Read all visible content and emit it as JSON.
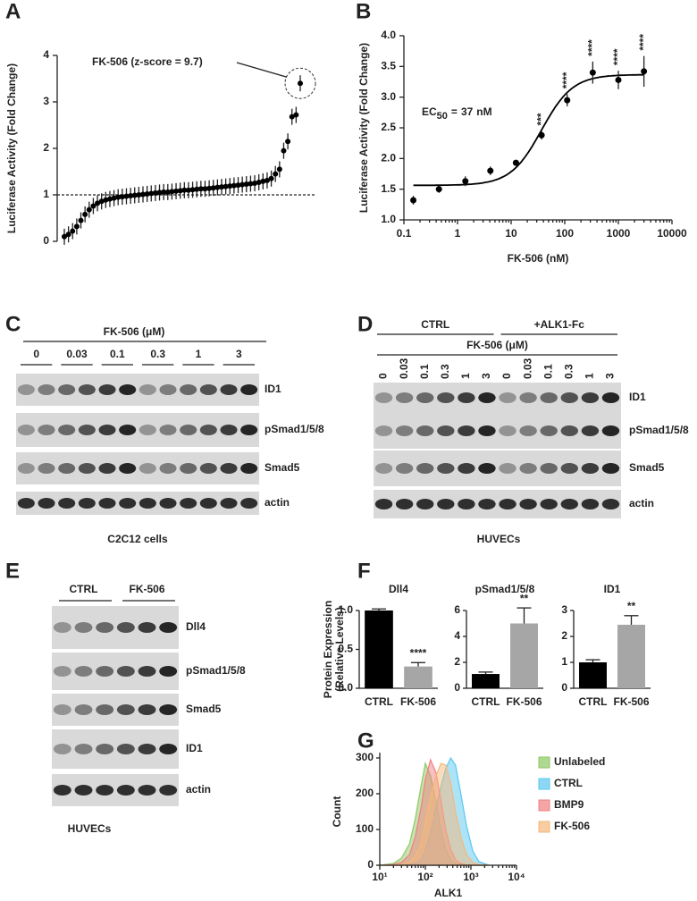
{
  "chart_data": [
    {
      "type": "rank",
      "panel": "A",
      "ylabel": "Luciferase Activity (Fold Change)",
      "annotation": "FK-506 (z-score = 9.7)",
      "ylim": [
        0,
        4
      ],
      "yticks": [
        0,
        1,
        2,
        3,
        4
      ],
      "reference_line": 1,
      "color": "#000000",
      "values": [
        0.1,
        0.15,
        0.22,
        0.32,
        0.45,
        0.58,
        0.68,
        0.76,
        0.82,
        0.86,
        0.89,
        0.91,
        0.93,
        0.95,
        0.96,
        0.97,
        0.98,
        0.99,
        1.0,
        1.01,
        1.02,
        1.03,
        1.04,
        1.05,
        1.06,
        1.06,
        1.07,
        1.08,
        1.09,
        1.1,
        1.1,
        1.11,
        1.12,
        1.13,
        1.13,
        1.14,
        1.15,
        1.16,
        1.17,
        1.18,
        1.19,
        1.2,
        1.21,
        1.22,
        1.23,
        1.24,
        1.25,
        1.27,
        1.29,
        1.31,
        1.35,
        1.45,
        1.55,
        1.95,
        2.15,
        2.68,
        2.72,
        3.4
      ]
    },
    {
      "type": "dose",
      "panel": "B",
      "ylabel": "Luciferase Activity (Fold Change)",
      "xlabel": "FK-506 (nM)",
      "log_x": true,
      "annotation": {
        "text": "EC",
        "sub": "50",
        "equals": "=",
        "value": 37,
        "unit": "nM"
      },
      "xlim": [
        0.1,
        10000
      ],
      "xticks": [
        0.1,
        1,
        10,
        100,
        1000,
        10000
      ],
      "ylim": [
        1,
        4
      ],
      "yticks": [
        {
          "value": 1,
          "label": "1.0"
        },
        {
          "value": 1.5,
          "label": "1.5"
        },
        {
          "value": 2,
          "label": "2.0"
        },
        {
          "value": 2.5,
          "label": "2.5"
        },
        {
          "value": 3,
          "label": "3.0"
        },
        {
          "value": 3.5,
          "label": "3.5"
        },
        {
          "value": 4,
          "label": "4.0"
        }
      ],
      "x": [
        0.15,
        0.45,
        1.4,
        4.1,
        12.3,
        37,
        111,
        333,
        1000,
        3000
      ],
      "values": [
        1.32,
        1.5,
        1.63,
        1.8,
        1.93,
        2.38,
        2.95,
        3.4,
        3.28,
        3.42
      ],
      "errors": [
        0.07,
        0.06,
        0.08,
        0.07,
        0.03,
        0.07,
        0.1,
        0.18,
        0.15,
        0.25
      ],
      "significance": [
        null,
        null,
        null,
        null,
        null,
        "***",
        "****",
        "****",
        "****",
        "****"
      ]
    },
    {
      "type": "bar",
      "panel": "F",
      "title": "Dll4",
      "ylabel": [
        "Protein Expression",
        "(Relative Levels)"
      ],
      "categories": [
        "CTRL",
        "FK-506"
      ],
      "values": [
        1.0,
        0.28
      ],
      "errors": [
        0.02,
        0.05
      ],
      "significance": [
        null,
        "****"
      ],
      "colors": [
        "#000000",
        "#a6a6a6"
      ],
      "ylim": [
        0,
        1.0
      ],
      "yticks": [
        {
          "value": 0,
          "label": "0.0"
        },
        {
          "value": 0.5,
          "label": "0.5"
        },
        {
          "value": 1,
          "label": "1.0"
        }
      ]
    },
    {
      "type": "bar",
      "title": "pSmad1/5/8",
      "categories": [
        "CTRL",
        "FK-506"
      ],
      "values": [
        1.1,
        5.0
      ],
      "errors": [
        0.15,
        1.2
      ],
      "significance": [
        null,
        "**"
      ],
      "colors": [
        "#000000",
        "#a6a6a6"
      ],
      "ylim": [
        0,
        6
      ],
      "yticks": [
        0,
        2,
        4,
        6
      ]
    },
    {
      "type": "bar",
      "title": "ID1",
      "categories": [
        "CTRL",
        "FK-506"
      ],
      "values": [
        1.0,
        2.45
      ],
      "errors": [
        0.1,
        0.35
      ],
      "significance": [
        null,
        "**"
      ],
      "colors": [
        "#000000",
        "#a6a6a6"
      ],
      "ylim": [
        0,
        3
      ],
      "yticks": [
        0,
        1,
        2,
        3
      ]
    },
    {
      "type": "area",
      "panel": "G",
      "xlabel": "ALK1",
      "ylabel": "Count",
      "log_x": true,
      "xlim": [
        10,
        10000
      ],
      "xticks": [
        {
          "value": 10,
          "label": "10¹"
        },
        {
          "value": 100,
          "label": "10²"
        },
        {
          "value": 1000,
          "label": "10³"
        },
        {
          "value": 10000,
          "label": "10⁴"
        }
      ],
      "ylim": [
        0,
        300
      ],
      "yticks": [
        0,
        100,
        200,
        300
      ],
      "x": [
        10,
        20,
        30,
        45,
        60,
        80,
        100,
        130,
        170,
        220,
        280,
        360,
        460,
        600,
        800,
        1100,
        1500,
        2500
      ],
      "series": [
        {
          "name": "Unlabeled",
          "color": "#8dc863",
          "values": [
            0,
            5,
            20,
            60,
            130,
            220,
            285,
            250,
            180,
            100,
            45,
            15,
            5,
            2,
            0,
            0,
            0,
            0
          ]
        },
        {
          "name": "CTRL",
          "color": "#5bc8ef",
          "values": [
            0,
            0,
            0,
            2,
            5,
            15,
            40,
            90,
            160,
            220,
            270,
            300,
            280,
            200,
            110,
            40,
            10,
            0
          ]
        },
        {
          "name": "BMP9",
          "color": "#f08080",
          "values": [
            0,
            2,
            8,
            30,
            80,
            160,
            240,
            295,
            260,
            180,
            100,
            45,
            15,
            5,
            1,
            0,
            0,
            0
          ]
        },
        {
          "name": "FK-506",
          "color": "#f5b87a",
          "values": [
            0,
            0,
            2,
            8,
            25,
            60,
            120,
            190,
            250,
            285,
            280,
            230,
            150,
            80,
            30,
            8,
            2,
            0
          ]
        }
      ]
    }
  ],
  "blots": {
    "C": {
      "panel": "C",
      "treatment": "FK-506 (μM)",
      "doses": [
        "0",
        "0.03",
        "0.1",
        "0.3",
        "1",
        "3"
      ],
      "rows": [
        "ID1",
        "pSmad1/5/8",
        "Smad5",
        "actin"
      ],
      "caption": "C2C12 cells"
    },
    "D": {
      "panel": "D",
      "groups": [
        "CTRL",
        "+ALK1-Fc"
      ],
      "treatment": "FK-506 (μM)",
      "doses": [
        "0",
        "0.03",
        "0.1",
        "0.3",
        "1",
        "3"
      ],
      "rows": [
        "ID1",
        "pSmad1/5/8",
        "Smad5",
        "actin"
      ],
      "caption": "HUVECs"
    },
    "E": {
      "panel": "E",
      "groups": [
        "CTRL",
        "FK-506"
      ],
      "rows": [
        "Dll4",
        "pSmad1/5/8",
        "Smad5",
        "ID1",
        "actin"
      ],
      "caption": "HUVECs"
    }
  }
}
